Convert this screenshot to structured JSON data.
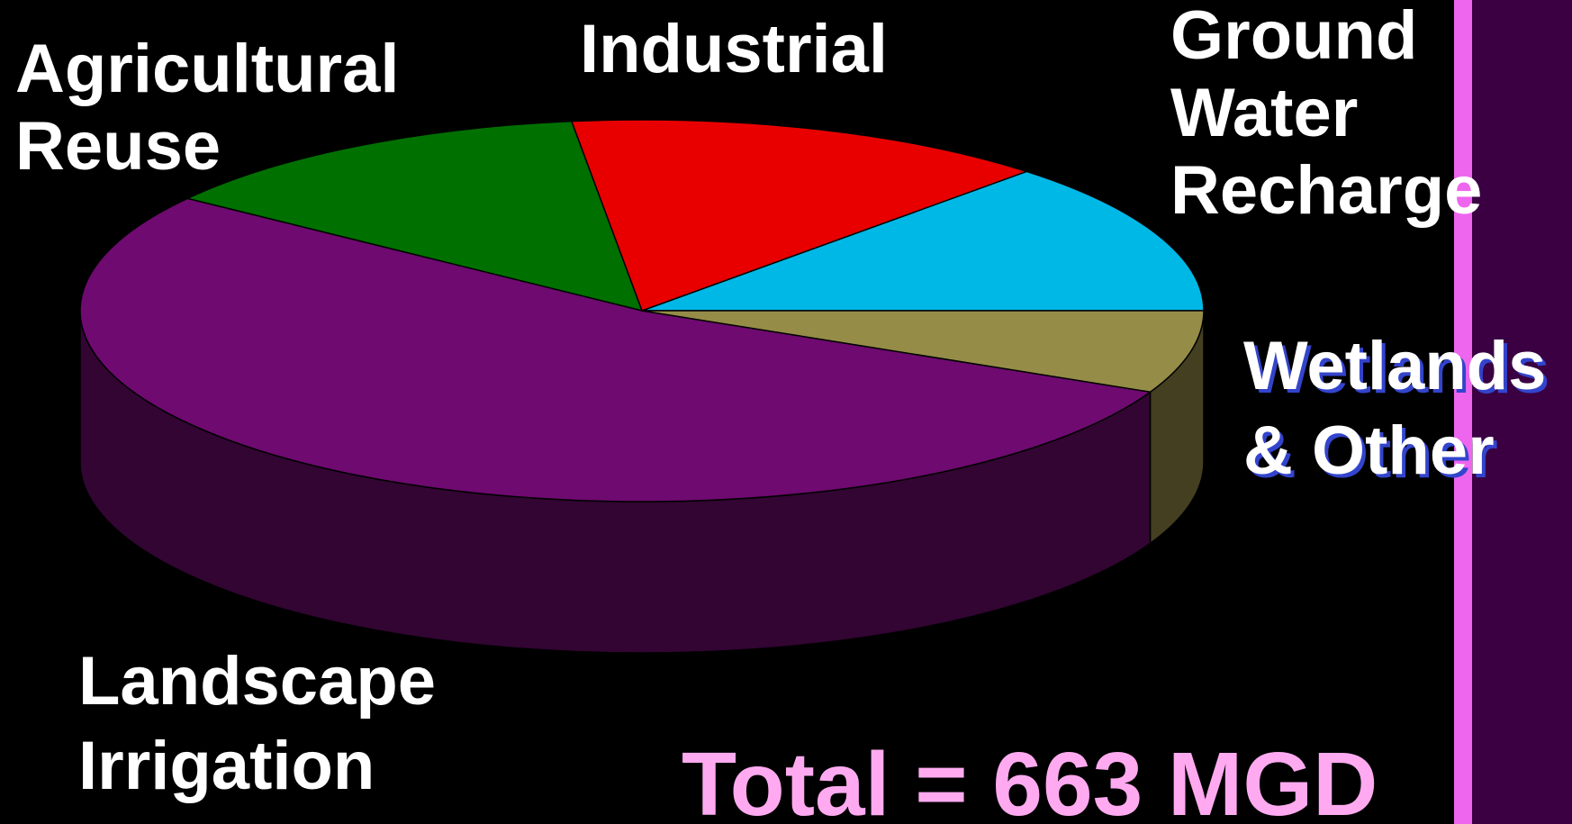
{
  "chart_data": {
    "type": "pie",
    "categories": [
      "Ground Water Recharge",
      "Industrial",
      "Agricultural Reuse",
      "Landscape Irrigation",
      "Wetlands & Other"
    ],
    "values": [
      13,
      14,
      13,
      53,
      7
    ],
    "colors": [
      "#00b8e6",
      "#e80000",
      "#007000",
      "#6e0a70",
      "#958c48"
    ],
    "annotation": "Total = 663 MGD"
  }
}
